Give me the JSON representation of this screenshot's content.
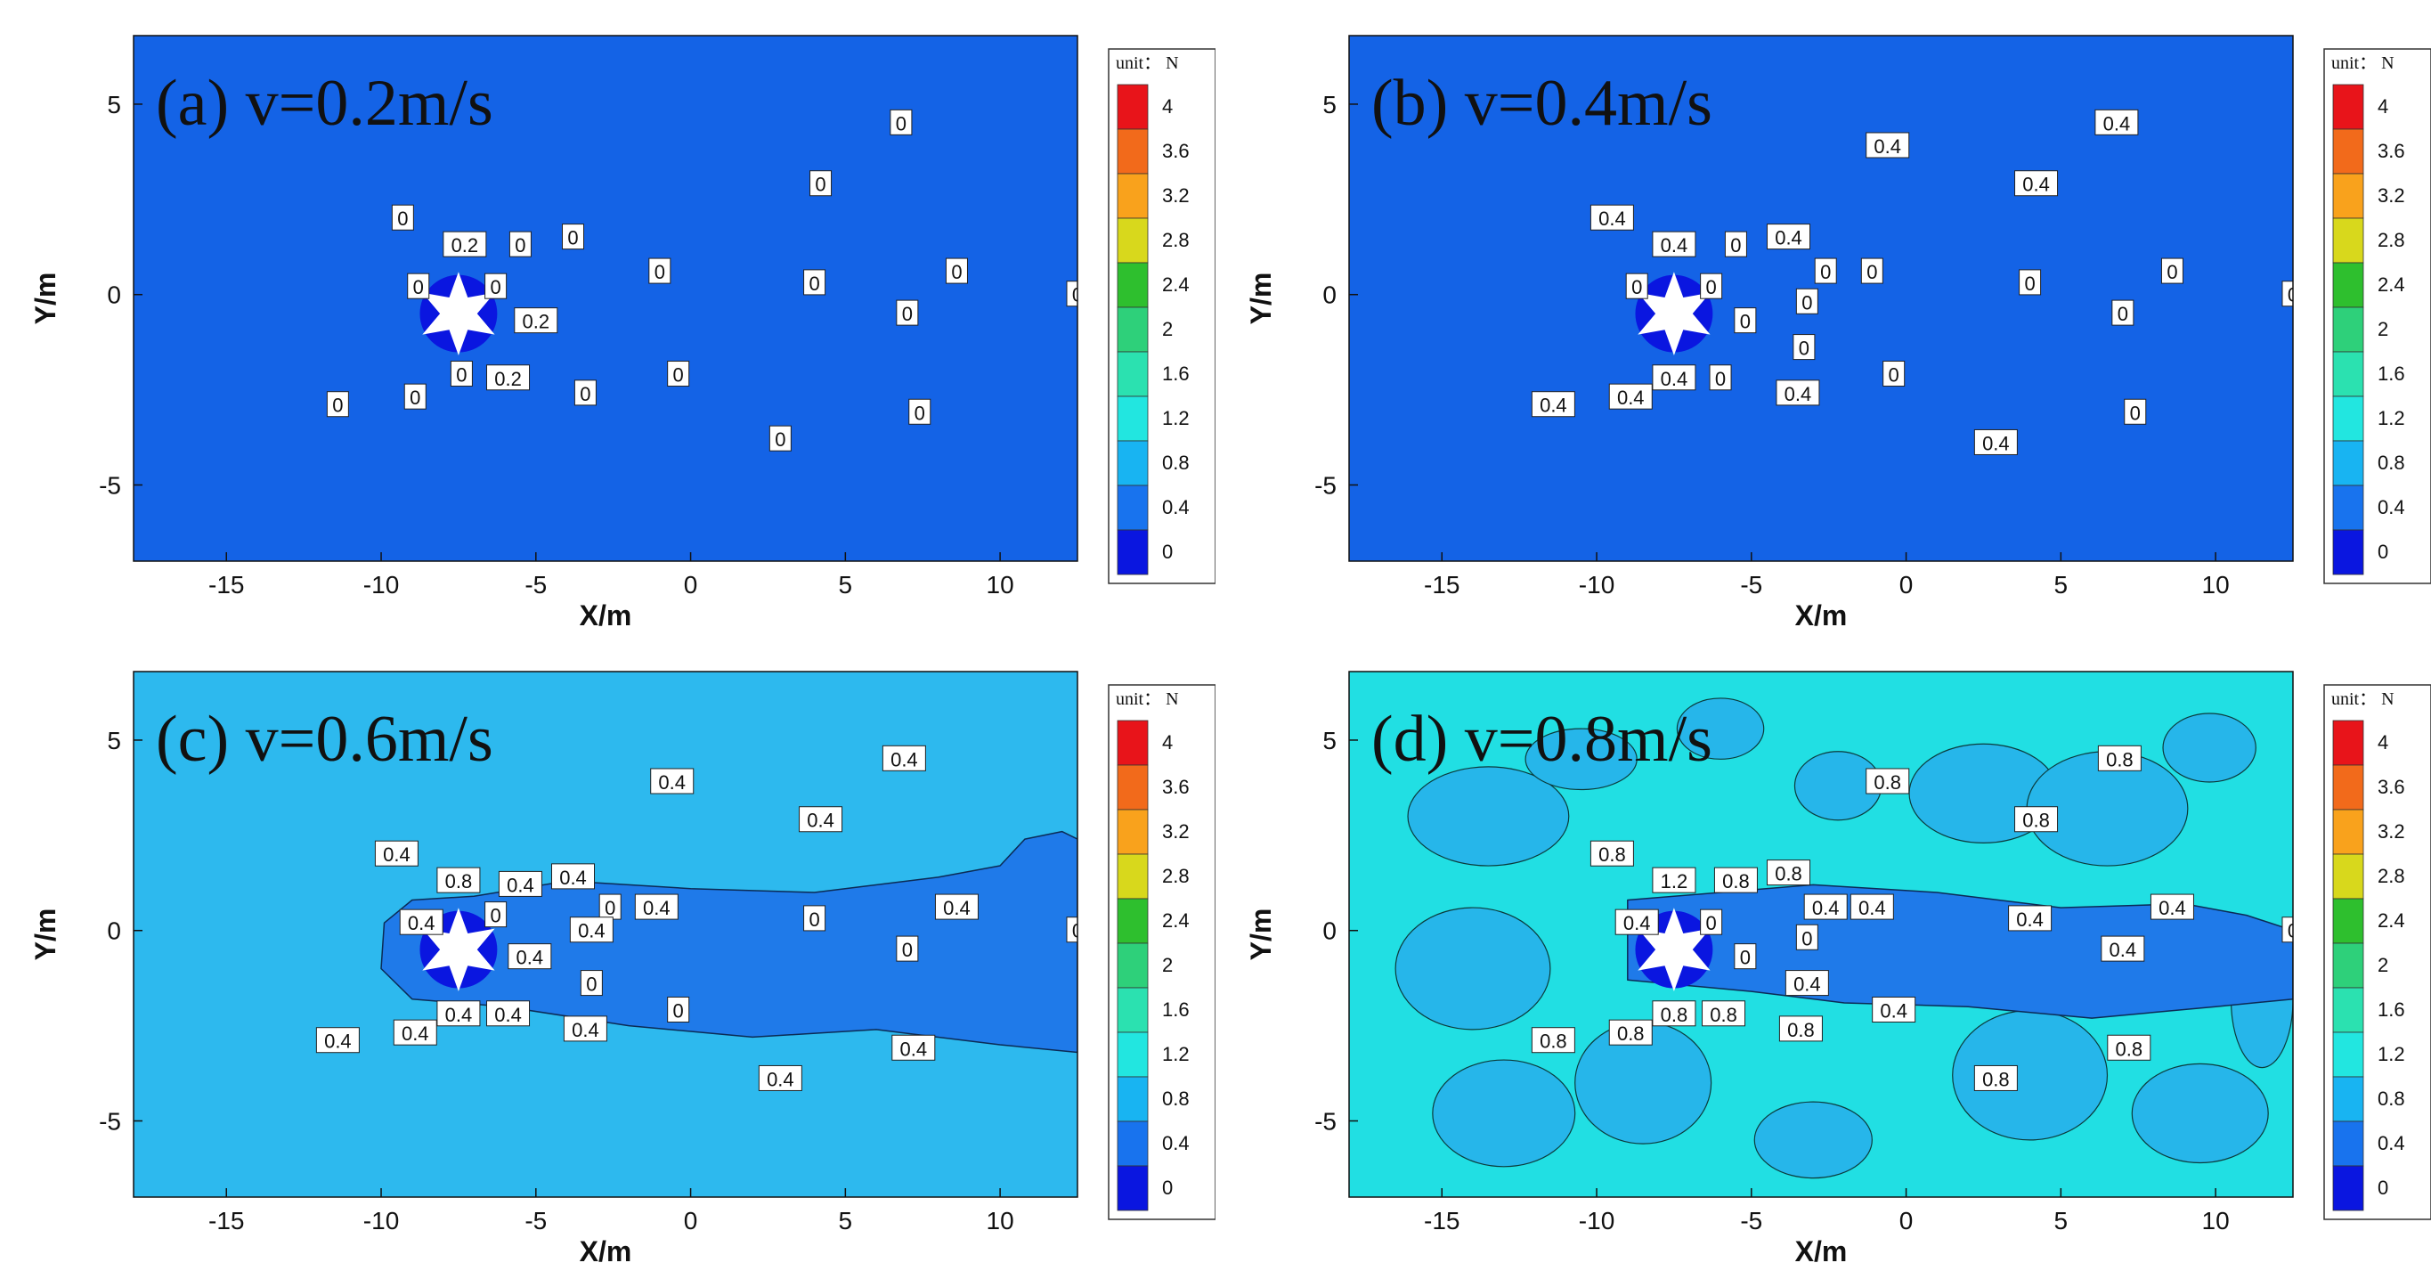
{
  "legend_levels": [
    "4",
    "3.6",
    "3.2",
    "2.8",
    "2.4",
    "2",
    "1.6",
    "1.2",
    "0.8",
    "0.4",
    "0"
  ],
  "legend_colors": [
    "#e8141a",
    "#f26a1b",
    "#f9a21c",
    "#d8d81c",
    "#2ebf2e",
    "#2ed07a",
    "#2be1b0",
    "#22e6e0",
    "#18b4f2",
    "#1873ee",
    "#0a16e0"
  ],
  "legend_title": "unit： N",
  "x_ticks": [
    "-15",
    "-10",
    "-5",
    "0",
    "5",
    "10"
  ],
  "y_ticks": [
    "5",
    "0",
    "-5"
  ],
  "x_label": "X/m",
  "y_label": "Y/m",
  "chart_data": [
    {
      "type": "heatmap",
      "title": "(a) v=0.2m/s",
      "xlabel": "X/m",
      "ylabel": "Y/m",
      "xlim": [
        -18,
        12.5
      ],
      "ylim": [
        -7,
        6.8
      ],
      "background_level": "0.4",
      "background_color": "#1463e6",
      "wake": [],
      "contour_labels": [
        {
          "x": 6.8,
          "y": 4.5,
          "t": "0"
        },
        {
          "x": 4.2,
          "y": 2.9,
          "t": "0"
        },
        {
          "x": -9.3,
          "y": 2.0,
          "t": "0"
        },
        {
          "x": -7.3,
          "y": 1.3,
          "t": "0.2"
        },
        {
          "x": -5.5,
          "y": 1.3,
          "t": "0"
        },
        {
          "x": -3.8,
          "y": 1.5,
          "t": "0"
        },
        {
          "x": -1.0,
          "y": 0.6,
          "t": "0"
        },
        {
          "x": 4.0,
          "y": 0.3,
          "t": "0"
        },
        {
          "x": 8.6,
          "y": 0.6,
          "t": "0"
        },
        {
          "x": 12.5,
          "y": 0.0,
          "t": "0"
        },
        {
          "x": -8.8,
          "y": 0.2,
          "t": "0"
        },
        {
          "x": -6.3,
          "y": 0.2,
          "t": "0"
        },
        {
          "x": -5.0,
          "y": -0.7,
          "t": "0.2"
        },
        {
          "x": 7.0,
          "y": -0.5,
          "t": "0"
        },
        {
          "x": -7.4,
          "y": -2.1,
          "t": "0"
        },
        {
          "x": -5.9,
          "y": -2.2,
          "t": "0.2"
        },
        {
          "x": -0.4,
          "y": -2.1,
          "t": "0"
        },
        {
          "x": -3.4,
          "y": -2.6,
          "t": "0"
        },
        {
          "x": -8.9,
          "y": -2.7,
          "t": "0"
        },
        {
          "x": -11.4,
          "y": -2.9,
          "t": "0"
        },
        {
          "x": 7.4,
          "y": -3.1,
          "t": "0"
        },
        {
          "x": 2.9,
          "y": -3.8,
          "t": "0"
        }
      ]
    },
    {
      "type": "heatmap",
      "title": "(b) v=0.4m/s",
      "xlabel": "X/m",
      "ylabel": "Y/m",
      "xlim": [
        -18,
        12.5
      ],
      "ylim": [
        -7,
        6.8
      ],
      "background_level": "0.4",
      "background_color": "#1463e6",
      "wake": [],
      "contour_labels": [
        {
          "x": 6.8,
          "y": 4.5,
          "t": "0.4"
        },
        {
          "x": -0.6,
          "y": 3.9,
          "t": "0.4"
        },
        {
          "x": 4.2,
          "y": 2.9,
          "t": "0.4"
        },
        {
          "x": -9.5,
          "y": 2.0,
          "t": "0.4"
        },
        {
          "x": -7.5,
          "y": 1.3,
          "t": "0.4"
        },
        {
          "x": -5.5,
          "y": 1.3,
          "t": "0"
        },
        {
          "x": -3.8,
          "y": 1.5,
          "t": "0.4"
        },
        {
          "x": -2.6,
          "y": 0.6,
          "t": "0"
        },
        {
          "x": -1.1,
          "y": 0.6,
          "t": "0"
        },
        {
          "x": 4.0,
          "y": 0.3,
          "t": "0"
        },
        {
          "x": 8.6,
          "y": 0.6,
          "t": "0"
        },
        {
          "x": 12.5,
          "y": 0.0,
          "t": "0"
        },
        {
          "x": -8.7,
          "y": 0.2,
          "t": "0"
        },
        {
          "x": -6.3,
          "y": 0.2,
          "t": "0"
        },
        {
          "x": -3.2,
          "y": -0.2,
          "t": "0"
        },
        {
          "x": -5.2,
          "y": -0.7,
          "t": "0"
        },
        {
          "x": 7.0,
          "y": -0.5,
          "t": "0"
        },
        {
          "x": -3.3,
          "y": -1.4,
          "t": "0"
        },
        {
          "x": -7.5,
          "y": -2.2,
          "t": "0.4"
        },
        {
          "x": -6.0,
          "y": -2.2,
          "t": "0"
        },
        {
          "x": -0.4,
          "y": -2.1,
          "t": "0"
        },
        {
          "x": -3.5,
          "y": -2.6,
          "t": "0.4"
        },
        {
          "x": -8.9,
          "y": -2.7,
          "t": "0.4"
        },
        {
          "x": -11.4,
          "y": -2.9,
          "t": "0.4"
        },
        {
          "x": 7.4,
          "y": -3.1,
          "t": "0"
        },
        {
          "x": 2.9,
          "y": -3.9,
          "t": "0.4"
        }
      ]
    },
    {
      "type": "heatmap",
      "title": "(c)  v=0.6m/s",
      "xlabel": "X/m",
      "ylabel": "Y/m",
      "xlim": [
        -18,
        12.5
      ],
      "ylim": [
        -7,
        6.8
      ],
      "background_level": "0.8",
      "background_color": "#2db9ee",
      "wake": [
        {
          "x": -9.9,
          "y": 0.2
        },
        {
          "x": -9.0,
          "y": 0.8
        },
        {
          "x": -7.0,
          "y": 0.9
        },
        {
          "x": -4.0,
          "y": 1.3
        },
        {
          "x": 0.0,
          "y": 1.1
        },
        {
          "x": 4.0,
          "y": 1.0
        },
        {
          "x": 8.0,
          "y": 1.4
        },
        {
          "x": 10.0,
          "y": 1.7
        },
        {
          "x": 10.8,
          "y": 2.4
        },
        {
          "x": 12.0,
          "y": 2.6
        },
        {
          "x": 12.5,
          "y": 2.4
        },
        {
          "x": 12.5,
          "y": -3.2
        },
        {
          "x": 10.0,
          "y": -3.0
        },
        {
          "x": 6.0,
          "y": -2.6
        },
        {
          "x": 2.0,
          "y": -2.8
        },
        {
          "x": -2.0,
          "y": -2.5
        },
        {
          "x": -6.0,
          "y": -2.0
        },
        {
          "x": -9.0,
          "y": -1.8
        },
        {
          "x": -10.0,
          "y": -1.0
        }
      ],
      "wake_color": "#1f7ae9",
      "contour_labels": [
        {
          "x": 6.9,
          "y": 4.5,
          "t": "0.4"
        },
        {
          "x": -0.6,
          "y": 3.9,
          "t": "0.4"
        },
        {
          "x": 4.2,
          "y": 2.9,
          "t": "0.4"
        },
        {
          "x": -9.5,
          "y": 2.0,
          "t": "0.4"
        },
        {
          "x": -7.5,
          "y": 1.3,
          "t": "0.8"
        },
        {
          "x": -5.5,
          "y": 1.2,
          "t": "0.4"
        },
        {
          "x": -3.8,
          "y": 1.4,
          "t": "0.4"
        },
        {
          "x": -2.6,
          "y": 0.6,
          "t": "0"
        },
        {
          "x": -1.1,
          "y": 0.6,
          "t": "0.4"
        },
        {
          "x": 4.0,
          "y": 0.3,
          "t": "0"
        },
        {
          "x": 8.6,
          "y": 0.6,
          "t": "0.4"
        },
        {
          "x": 12.5,
          "y": 0.0,
          "t": "0"
        },
        {
          "x": -8.7,
          "y": 0.2,
          "t": "0.4"
        },
        {
          "x": -6.3,
          "y": 0.4,
          "t": "0"
        },
        {
          "x": -3.2,
          "y": 0.0,
          "t": "0.4"
        },
        {
          "x": -5.2,
          "y": -0.7,
          "t": "0.4"
        },
        {
          "x": 7.0,
          "y": -0.5,
          "t": "0"
        },
        {
          "x": -3.2,
          "y": -1.4,
          "t": "0"
        },
        {
          "x": -7.5,
          "y": -2.2,
          "t": "0.4"
        },
        {
          "x": -5.9,
          "y": -2.2,
          "t": "0.4"
        },
        {
          "x": -0.4,
          "y": -2.1,
          "t": "0"
        },
        {
          "x": -3.4,
          "y": -2.6,
          "t": "0.4"
        },
        {
          "x": -8.9,
          "y": -2.7,
          "t": "0.4"
        },
        {
          "x": -11.4,
          "y": -2.9,
          "t": "0.4"
        },
        {
          "x": 7.2,
          "y": -3.1,
          "t": "0.4"
        },
        {
          "x": 2.9,
          "y": -3.9,
          "t": "0.4"
        }
      ]
    },
    {
      "type": "heatmap",
      "title": "(d)  v=0.8m/s",
      "xlabel": "X/m",
      "ylabel": "Y/m",
      "xlim": [
        -18,
        12.5
      ],
      "ylim": [
        -7,
        6.8
      ],
      "background_level": "1.2",
      "background_color": "#21dfe3",
      "patches": [
        {
          "cx": -13.5,
          "cy": 3.0,
          "rx": 2.6,
          "ry": 1.3
        },
        {
          "cx": -10.5,
          "cy": 4.5,
          "rx": 1.8,
          "ry": 0.8
        },
        {
          "cx": -14.0,
          "cy": -1.0,
          "rx": 2.5,
          "ry": 1.6
        },
        {
          "cx": -13.0,
          "cy": -4.8,
          "rx": 2.3,
          "ry": 1.4
        },
        {
          "cx": -8.5,
          "cy": -4.0,
          "rx": 2.2,
          "ry": 1.6
        },
        {
          "cx": 2.5,
          "cy": 3.6,
          "rx": 2.4,
          "ry": 1.3
        },
        {
          "cx": 6.5,
          "cy": 3.2,
          "rx": 2.6,
          "ry": 1.5
        },
        {
          "cx": 9.8,
          "cy": 4.8,
          "rx": 1.5,
          "ry": 0.9
        },
        {
          "cx": 4.0,
          "cy": -3.8,
          "rx": 2.5,
          "ry": 1.7
        },
        {
          "cx": 9.5,
          "cy": -4.8,
          "rx": 2.2,
          "ry": 1.3
        },
        {
          "cx": -3.0,
          "cy": -5.5,
          "rx": 1.9,
          "ry": 1.0
        },
        {
          "cx": -6.0,
          "cy": 5.3,
          "rx": 1.4,
          "ry": 0.8
        },
        {
          "cx": -2.2,
          "cy": 3.8,
          "rx": 1.4,
          "ry": 0.9
        },
        {
          "cx": 11.5,
          "cy": -1.8,
          "rx": 1.0,
          "ry": 1.8
        }
      ],
      "patch_color": "#26b6ea",
      "wake": [
        {
          "x": -9.0,
          "y": 0.8
        },
        {
          "x": -6.0,
          "y": 1.0
        },
        {
          "x": -3.0,
          "y": 1.2
        },
        {
          "x": 1.0,
          "y": 1.0
        },
        {
          "x": 5.0,
          "y": 0.6
        },
        {
          "x": 9.0,
          "y": 0.7
        },
        {
          "x": 11.0,
          "y": 0.4
        },
        {
          "x": 12.5,
          "y": 0.0
        },
        {
          "x": 12.5,
          "y": -1.8
        },
        {
          "x": 10.0,
          "y": -2.0
        },
        {
          "x": 6.0,
          "y": -2.3
        },
        {
          "x": 2.0,
          "y": -2.0
        },
        {
          "x": -2.0,
          "y": -1.9
        },
        {
          "x": -5.0,
          "y": -1.6
        },
        {
          "x": -9.0,
          "y": -1.3
        }
      ],
      "wake_color": "#1f7ae9",
      "contour_labels": [
        {
          "x": 6.9,
          "y": 4.5,
          "t": "0.8"
        },
        {
          "x": -0.6,
          "y": 3.9,
          "t": "0.8"
        },
        {
          "x": 4.2,
          "y": 2.9,
          "t": "0.8"
        },
        {
          "x": -9.5,
          "y": 2.0,
          "t": "0.8"
        },
        {
          "x": -7.5,
          "y": 1.3,
          "t": "1.2"
        },
        {
          "x": -5.5,
          "y": 1.3,
          "t": "0.8"
        },
        {
          "x": -3.8,
          "y": 1.5,
          "t": "0.8"
        },
        {
          "x": -2.6,
          "y": 0.6,
          "t": "0.4"
        },
        {
          "x": -1.1,
          "y": 0.6,
          "t": "0.4"
        },
        {
          "x": 4.0,
          "y": 0.3,
          "t": "0.4"
        },
        {
          "x": 8.6,
          "y": 0.6,
          "t": "0.4"
        },
        {
          "x": 12.5,
          "y": 0.0,
          "t": "0"
        },
        {
          "x": -8.7,
          "y": 0.2,
          "t": "0.4"
        },
        {
          "x": -6.3,
          "y": 0.2,
          "t": "0"
        },
        {
          "x": -3.2,
          "y": -0.2,
          "t": "0"
        },
        {
          "x": -5.2,
          "y": -0.7,
          "t": "0"
        },
        {
          "x": 7.0,
          "y": -0.5,
          "t": "0.4"
        },
        {
          "x": -3.2,
          "y": -1.4,
          "t": "0.4"
        },
        {
          "x": -7.5,
          "y": -2.2,
          "t": "0.8"
        },
        {
          "x": -5.9,
          "y": -2.2,
          "t": "0.8"
        },
        {
          "x": -0.4,
          "y": -2.1,
          "t": "0.4"
        },
        {
          "x": -3.4,
          "y": -2.6,
          "t": "0.8"
        },
        {
          "x": -8.9,
          "y": -2.7,
          "t": "0.8"
        },
        {
          "x": -11.4,
          "y": -2.9,
          "t": "0.8"
        },
        {
          "x": 7.2,
          "y": -3.1,
          "t": "0.8"
        },
        {
          "x": 2.9,
          "y": -3.9,
          "t": "0.8"
        }
      ]
    }
  ]
}
